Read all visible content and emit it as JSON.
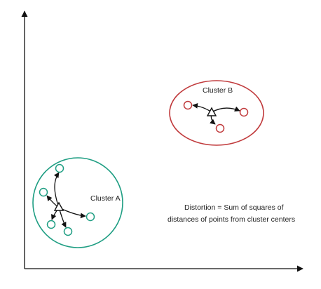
{
  "clusters": {
    "a": {
      "label": "Cluster A",
      "color": "#1f9e83"
    },
    "b": {
      "label": "Cluster B",
      "color": "#c0393b"
    }
  },
  "caption": {
    "line1": "Distortion = Sum of squares of",
    "line2": "distances of points from cluster centers"
  },
  "colors": {
    "axis": "#111111",
    "arrow": "#111111",
    "centroid": "#111111",
    "text": "#222222"
  }
}
